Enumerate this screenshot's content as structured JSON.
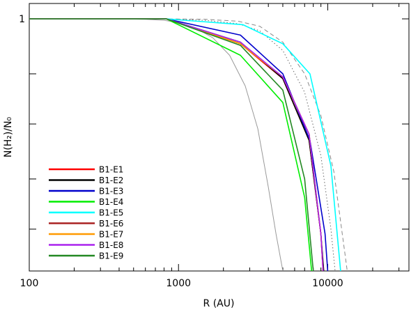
{
  "chart_data": {
    "type": "line",
    "xlabel": "R (AU)",
    "ylabel": "N(H₂)/N₀",
    "x_scale": "log",
    "y_scale": "log",
    "xlim": [
      100,
      35000
    ],
    "ylim": [
      0.004,
      1.4
    ],
    "x_major_ticks": [
      {
        "value": 100,
        "label": "100"
      },
      {
        "value": 1000,
        "label": "1000"
      },
      {
        "value": 10000,
        "label": "10000"
      }
    ],
    "x_minor_ticks": [
      200,
      300,
      400,
      500,
      600,
      700,
      800,
      900,
      2000,
      3000,
      4000,
      5000,
      6000,
      7000,
      8000,
      9000,
      20000,
      30000
    ],
    "y_ticks": [
      {
        "value": 1,
        "label": "1"
      },
      {
        "value": 0.3,
        "label": ""
      },
      {
        "value": 0.1,
        "label": ""
      },
      {
        "value": 0.03,
        "label": ""
      },
      {
        "value": 0.01,
        "label": ""
      }
    ],
    "grid": false,
    "legend_position": "bottom-left",
    "series": [
      {
        "name": "B1-E1",
        "color": "#ff0000",
        "style": "solid",
        "x": [
          100,
          830,
          2600,
          5000,
          7500,
          9000,
          9300
        ],
        "y": [
          1,
          1,
          0.58,
          0.27,
          0.07,
          0.009,
          0.004
        ]
      },
      {
        "name": "B1-E2",
        "color": "#000000",
        "style": "solid",
        "x": [
          100,
          830,
          2600,
          5000,
          7500,
          9000,
          9400
        ],
        "y": [
          1,
          1,
          0.6,
          0.27,
          0.07,
          0.009,
          0.004
        ]
      },
      {
        "name": "B1-E3",
        "color": "#0000cc",
        "style": "solid",
        "x": [
          100,
          830,
          2600,
          5000,
          7600,
          9600,
          10000
        ],
        "y": [
          1,
          1,
          0.7,
          0.3,
          0.07,
          0.009,
          0.004
        ]
      },
      {
        "name": "B1-E4",
        "color": "#00ee00",
        "style": "solid",
        "x": [
          100,
          830,
          2600,
          5000,
          7000,
          7800
        ],
        "y": [
          1,
          1,
          0.45,
          0.16,
          0.02,
          0.004
        ]
      },
      {
        "name": "B1-E5",
        "color": "#00ffff",
        "style": "solid",
        "x": [
          100,
          830,
          2700,
          5000,
          7600,
          10500,
          12200
        ],
        "y": [
          1,
          1,
          0.88,
          0.58,
          0.3,
          0.04,
          0.004
        ]
      },
      {
        "name": "B1-E6",
        "color": "#aa2222",
        "style": "solid",
        "x": [
          100,
          830,
          2600,
          5000,
          7500,
          9000,
          9300
        ],
        "y": [
          1,
          1,
          0.58,
          0.28,
          0.08,
          0.009,
          0.004
        ]
      },
      {
        "name": "B1-E7",
        "color": "#ff9900",
        "style": "solid",
        "x": [
          100,
          830,
          2600,
          5000,
          7500,
          9000,
          9300
        ],
        "y": [
          1,
          1,
          0.58,
          0.28,
          0.08,
          0.009,
          0.004
        ]
      },
      {
        "name": "B1-E8",
        "color": "#aa22ee",
        "style": "solid",
        "x": [
          100,
          830,
          2600,
          5000,
          7500,
          9000,
          9300
        ],
        "y": [
          1,
          1,
          0.6,
          0.28,
          0.08,
          0.009,
          0.004
        ]
      },
      {
        "name": "B1-E9",
        "color": "#228822",
        "style": "solid",
        "x": [
          100,
          830,
          2600,
          5000,
          7000,
          8000
        ],
        "y": [
          1,
          1,
          0.56,
          0.21,
          0.03,
          0.004
        ]
      },
      {
        "name": "",
        "color": "#999999",
        "style": "solid",
        "x": [
          100,
          400,
          600,
          800,
          1000,
          1300,
          1700,
          2200,
          2800,
          3400,
          4000,
          4500,
          5000
        ],
        "y": [
          1,
          1,
          0.99,
          0.97,
          0.92,
          0.82,
          0.66,
          0.45,
          0.23,
          0.09,
          0.025,
          0.009,
          0.004
        ]
      },
      {
        "name": "",
        "color": "#888888",
        "style": "dashed",
        "x": [
          100,
          800,
          1500,
          2500,
          3500,
          5000,
          7000,
          9000,
          11000,
          13000,
          13500
        ],
        "y": [
          1,
          1,
          0.99,
          0.95,
          0.85,
          0.6,
          0.3,
          0.12,
          0.035,
          0.006,
          0.004
        ]
      },
      {
        "name": "",
        "color": "#666666",
        "style": "dotted",
        "x": [
          100,
          800,
          1500,
          2500,
          3500,
          5000,
          7000,
          9000,
          10500,
          11200
        ],
        "y": [
          1,
          1,
          0.97,
          0.9,
          0.77,
          0.5,
          0.2,
          0.05,
          0.01,
          0.004
        ]
      }
    ]
  }
}
